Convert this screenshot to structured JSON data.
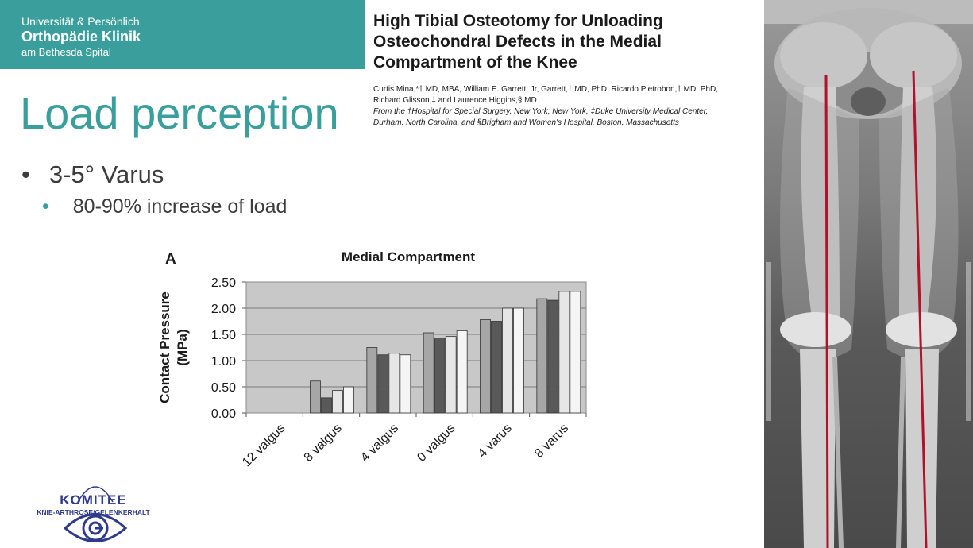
{
  "header": {
    "line1": "Universität & Persönlich",
    "line2": "Orthopädie Klinik",
    "line3": "am Bethesda Spital",
    "color": "#3a9f9c"
  },
  "slide": {
    "title": "Load perception",
    "bullets": [
      {
        "marker": "•",
        "text": "3-5° Varus"
      },
      {
        "marker": "•",
        "text": "80-90% increase of load"
      }
    ]
  },
  "paper": {
    "title_lines": [
      "High Tibial Osteotomy for Unloading",
      "Osteochondral Defects in the Medial",
      "Compartment of the Knee"
    ],
    "authors_lines": [
      "Curtis Mina,*† MD, MBA, William E. Garrett, Jr, Garrett,† MD, PhD, Ricardo Pietrobon,† MD, PhD,",
      "Richard Glisson,‡ and Laurence Higgins,§ MD"
    ],
    "affiliation_lines": [
      "From the †Hospital for Special Surgery, New York, New York, ‡Duke University Medical Center,",
      "Durham, North Carolina, and §Brigham and Women's Hospital, Boston, Massachusetts"
    ]
  },
  "chart_data": {
    "type": "bar",
    "panel_label": "A",
    "title": "Medial Compartment",
    "ylabel_line1": "Contact Pressure",
    "ylabel_line2": "(MPa)",
    "xlabel": "",
    "categories": [
      "12 valgus",
      "8 valgus",
      "4 valgus",
      "0 valgus",
      "4 varus",
      "8 varus"
    ],
    "ylim": [
      0,
      2.5
    ],
    "yticks": [
      "0.00",
      "0.50",
      "1.00",
      "1.50",
      "2.00",
      "2.50"
    ],
    "grid": true,
    "legend": "none",
    "series": [
      {
        "color": "#a6a6a6",
        "values": [
          0,
          0.61,
          1.25,
          1.53,
          1.78,
          2.18
        ]
      },
      {
        "color": "#595959",
        "values": [
          0,
          0.29,
          1.11,
          1.43,
          1.75,
          2.15
        ]
      },
      {
        "color": "#e6e6e6",
        "values": [
          0,
          0.43,
          1.14,
          1.46,
          2.0,
          2.32
        ]
      },
      {
        "color": "#f5f5f5",
        "values": [
          0,
          0.5,
          1.11,
          1.57,
          2.0,
          2.32
        ]
      }
    ],
    "plot_background": "#c8c8c8"
  },
  "logo": {
    "line1": "KOMITEE",
    "line2": "KNIE-ARTHROSE/GELENKERHALT",
    "color": "#2e3a8c"
  }
}
